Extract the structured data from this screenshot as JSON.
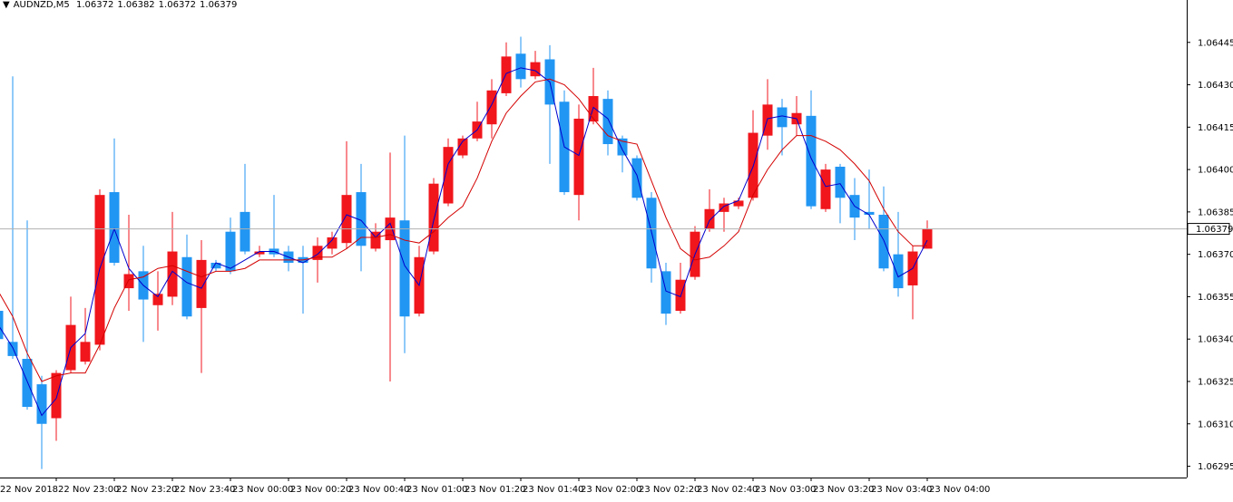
{
  "chart_data": {
    "type": "candlestick",
    "title": "AUDNZD,M5",
    "categories": [
      "22 Nov 2018",
      null,
      null,
      null,
      "22 Nov 23:00",
      null,
      null,
      null,
      "22 Nov 23:20",
      null,
      null,
      null,
      "22 Nov 23:40",
      null,
      null,
      null,
      "23 Nov 00:00",
      null,
      null,
      null,
      "23 Nov 00:20",
      null,
      null,
      null,
      "23 Nov 00:40",
      null,
      null,
      null,
      "23 Nov 01:00",
      null,
      null,
      null,
      "23 Nov 01:20",
      null,
      null,
      null,
      "23 Nov 01:40",
      null,
      null,
      null,
      "23 Nov 02:00",
      null,
      null,
      null,
      "23 Nov 02:20",
      null,
      null,
      null,
      "23 Nov 02:40",
      null,
      null,
      null,
      "23 Nov 03:00",
      null,
      null,
      null,
      "23 Nov 03:20",
      null,
      null,
      null,
      "23 Nov 03:40",
      null,
      null,
      null,
      "23 Nov 04:00"
    ],
    "open": [
      1.0635,
      1.06339,
      1.06333,
      1.06324,
      1.06312,
      1.06329,
      1.06332,
      1.06338,
      1.06392,
      1.06358,
      1.06364,
      1.06352,
      1.06355,
      1.06369,
      1.06351,
      1.06367,
      1.06378,
      1.06385,
      1.0637,
      1.06372,
      1.06371,
      1.06369,
      1.06368,
      1.06372,
      1.06374,
      1.06392,
      1.06372,
      1.06375,
      1.06382,
      1.06349,
      1.06371,
      1.06388,
      1.06405,
      1.06411,
      1.06416,
      1.06427,
      1.06441,
      1.06433,
      1.06439,
      1.06424,
      1.06391,
      1.06417,
      1.06425,
      1.06411,
      1.06404,
      1.0639,
      1.06364,
      1.0635,
      1.06362,
      1.06379,
      1.06385,
      1.06387,
      1.0639,
      1.06412,
      1.06422,
      1.06416,
      1.06419,
      1.06386,
      1.06401,
      1.06391,
      1.06385,
      1.06384,
      1.0637,
      1.06359,
      1.06372
    ],
    "high": [
      1.06354,
      1.06433,
      1.06382,
      1.06327,
      1.06329,
      1.06355,
      1.06351,
      1.06393,
      1.06411,
      1.06384,
      1.06373,
      1.06364,
      1.06385,
      1.06377,
      1.06375,
      1.06368,
      1.06383,
      1.06402,
      1.06373,
      1.06391,
      1.06373,
      1.06373,
      1.06376,
      1.06378,
      1.0641,
      1.06402,
      1.06381,
      1.06406,
      1.06412,
      1.06373,
      1.06397,
      1.06411,
      1.06412,
      1.06424,
      1.06432,
      1.06445,
      1.06447,
      1.06442,
      1.06444,
      1.06428,
      1.06423,
      1.06436,
      1.06428,
      1.06412,
      1.06405,
      1.06392,
      1.06367,
      1.06367,
      1.0638,
      1.06393,
      1.0639,
      1.0639,
      1.06421,
      1.06432,
      1.06425,
      1.06426,
      1.06428,
      1.06402,
      1.06402,
      1.06397,
      1.064,
      1.06394,
      1.06385,
      1.06373,
      1.06382
    ],
    "low": [
      1.06338,
      1.06333,
      1.06315,
      1.06294,
      1.06304,
      1.06328,
      1.06331,
      1.06336,
      1.06366,
      1.0635,
      1.06339,
      1.06343,
      1.06352,
      1.06347,
      1.06328,
      1.06364,
      1.06363,
      1.0637,
      1.06369,
      1.06369,
      1.06364,
      1.06349,
      1.0636,
      1.0637,
      1.06372,
      1.06364,
      1.06371,
      1.06325,
      1.06335,
      1.06348,
      1.0637,
      1.06387,
      1.06404,
      1.0641,
      1.06411,
      1.06426,
      1.06429,
      1.06432,
      1.06402,
      1.06391,
      1.06382,
      1.06416,
      1.06405,
      1.06399,
      1.06389,
      1.0636,
      1.06345,
      1.06349,
      1.06361,
      1.06378,
      1.06378,
      1.06386,
      1.06389,
      1.06407,
      1.06405,
      1.06412,
      1.06386,
      1.06385,
      1.06381,
      1.06375,
      1.06379,
      1.06364,
      1.06355,
      1.06347,
      1.06372
    ],
    "close": [
      1.0634,
      1.06334,
      1.06316,
      1.0631,
      1.06328,
      1.06345,
      1.06339,
      1.06391,
      1.06367,
      1.06363,
      1.06354,
      1.06356,
      1.06371,
      1.06348,
      1.06368,
      1.06365,
      1.06364,
      1.06371,
      1.06371,
      1.0637,
      1.06367,
      1.06367,
      1.06373,
      1.06376,
      1.06391,
      1.06373,
      1.06378,
      1.06383,
      1.06348,
      1.06369,
      1.06395,
      1.06408,
      1.06411,
      1.06417,
      1.06428,
      1.0644,
      1.06432,
      1.06438,
      1.06423,
      1.06392,
      1.06418,
      1.06426,
      1.06409,
      1.06405,
      1.0639,
      1.06365,
      1.06349,
      1.06361,
      1.06378,
      1.06386,
      1.06388,
      1.06389,
      1.06413,
      1.06423,
      1.06415,
      1.0642,
      1.06387,
      1.064,
      1.0639,
      1.06383,
      1.06384,
      1.06365,
      1.06358,
      1.06371,
      1.06379
    ],
    "up_color": "#f0161c",
    "down_color": "#2196f3",
    "lines": [
      {
        "color": "#0000cd",
        "values": [
          1.06345,
          1.06337,
          1.06325,
          1.06313,
          1.06319,
          1.06337,
          1.06342,
          1.06365,
          1.06379,
          1.06365,
          1.06359,
          1.06355,
          1.06364,
          1.0636,
          1.06358,
          1.06367,
          1.06365,
          1.06368,
          1.06371,
          1.06371,
          1.06369,
          1.06367,
          1.0637,
          1.06375,
          1.06384,
          1.06382,
          1.06376,
          1.06381,
          1.06366,
          1.06359,
          1.06382,
          1.06402,
          1.0641,
          1.06414,
          1.06423,
          1.06434,
          1.06436,
          1.06435,
          1.06431,
          1.06408,
          1.06405,
          1.06422,
          1.06418,
          1.06407,
          1.06398,
          1.06378,
          1.06357,
          1.06355,
          1.0637,
          1.06382,
          1.06387,
          1.06389,
          1.06401,
          1.06418,
          1.06419,
          1.06418,
          1.06404,
          1.06394,
          1.06395,
          1.06387,
          1.06384,
          1.06375,
          1.06362,
          1.06365,
          1.06375
        ]
      },
      {
        "color": "#d40000",
        "values": [
          1.06357,
          1.06348,
          1.06335,
          1.06325,
          1.06327,
          1.06328,
          1.06328,
          1.06338,
          1.06351,
          1.06361,
          1.06362,
          1.06365,
          1.06366,
          1.06364,
          1.06362,
          1.06364,
          1.06364,
          1.06365,
          1.06368,
          1.06368,
          1.06368,
          1.06368,
          1.06369,
          1.06369,
          1.06372,
          1.06376,
          1.06376,
          1.06377,
          1.06375,
          1.06374,
          1.06378,
          1.06383,
          1.06387,
          1.06397,
          1.0641,
          1.0642,
          1.06426,
          1.06431,
          1.06432,
          1.0643,
          1.06425,
          1.06418,
          1.06412,
          1.0641,
          1.06409,
          1.06396,
          1.06383,
          1.06372,
          1.06368,
          1.06369,
          1.06373,
          1.06378,
          1.06391,
          1.064,
          1.06407,
          1.06412,
          1.06412,
          1.0641,
          1.06407,
          1.06402,
          1.06396,
          1.06386,
          1.06378,
          1.06373,
          1.06373
        ]
      }
    ],
    "ylim": [
      1.06291,
      1.0646
    ],
    "yticks": [
      1.06295,
      {
        "value": 1.0631,
        "label": "1.06310"
      },
      1.06325,
      {
        "value": 1.0634,
        "label": "1.06340"
      },
      1.06355,
      {
        "value": 1.0637,
        "label": "1.06370"
      },
      1.06385,
      {
        "value": 1.064,
        "label": "1.06400"
      },
      1.06415,
      {
        "value": 1.0643,
        "label": "1.06430"
      },
      1.06445
    ]
  }
}
